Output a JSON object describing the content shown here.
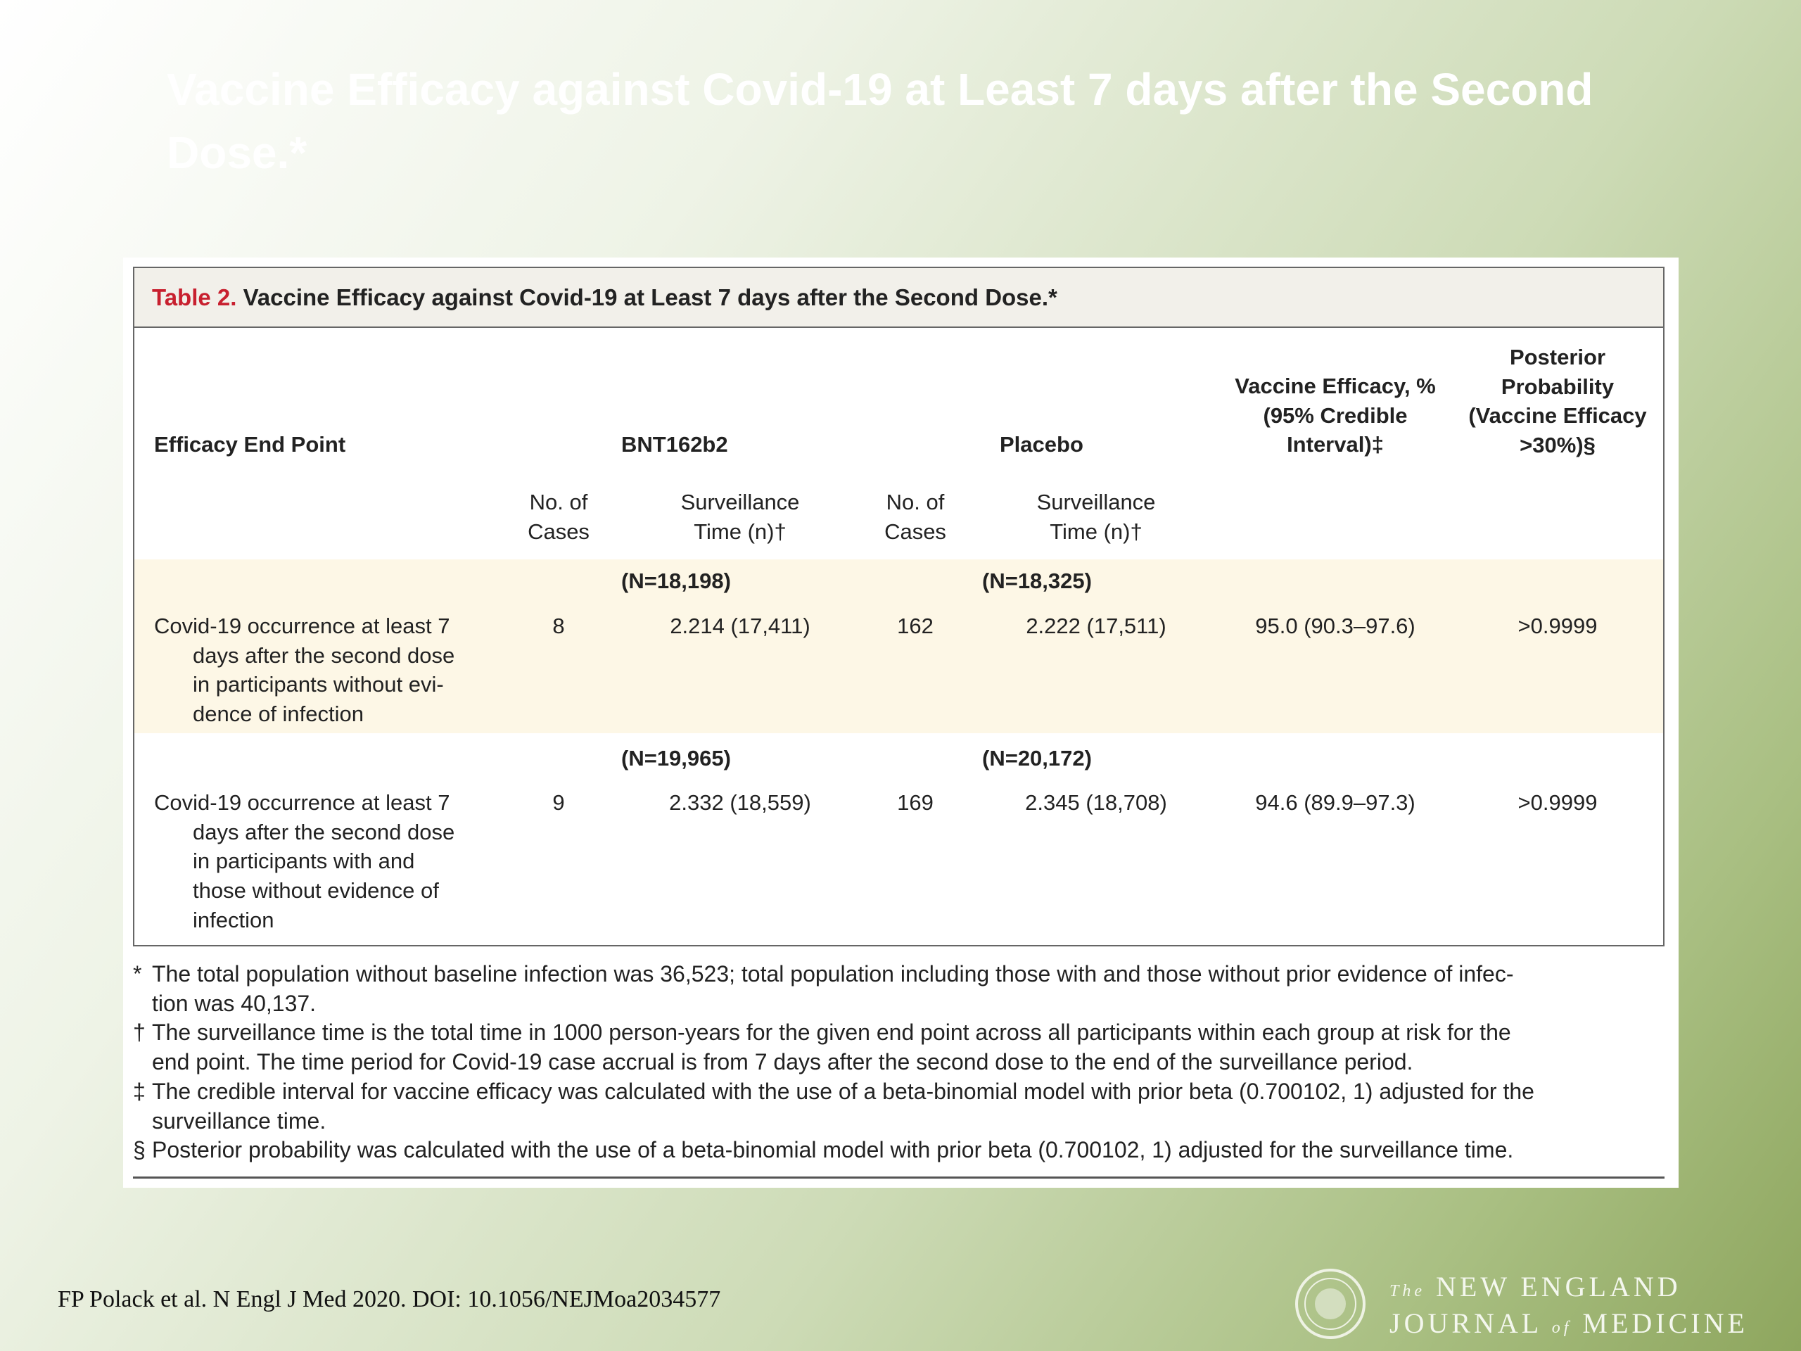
{
  "slide_title": "Vaccine Efficacy against Covid-19 at Least 7 days after the Second Dose.*",
  "table": {
    "label": "Table 2.",
    "caption": "Vaccine Efficacy against Covid-19 at Least 7 days after the Second Dose.*",
    "headers": {
      "end_point": "Efficacy End Point",
      "group1": "BNT162b2",
      "group2": "Placebo",
      "efficacy": [
        "Vaccine Efficacy, %",
        "(95% Credible",
        "Interval)‡"
      ],
      "posterior": [
        "Posterior",
        "Probability",
        "(Vaccine Efficacy",
        ">30%)§"
      ]
    },
    "subheaders": {
      "cases": [
        "No. of",
        "Cases"
      ],
      "time": [
        "Surveillance",
        "Time (n)†"
      ]
    },
    "rows": [
      {
        "n1": "(N=18,198)",
        "n2": "(N=18,325)",
        "end_point": [
          "Covid-19 occurrence at least 7",
          "days after the second dose",
          "in participants without evi-",
          "dence of infection"
        ],
        "cases1": "8",
        "time1": "2.214 (17,411)",
        "cases2": "162",
        "time2": "2.222 (17,511)",
        "efficacy": "95.0 (90.3–97.6)",
        "posterior": ">0.9999"
      },
      {
        "n1": "(N=19,965)",
        "n2": "(N=20,172)",
        "end_point": [
          "Covid-19 occurrence at least 7",
          "days after the second dose",
          "in participants with and",
          "those without evidence of",
          "infection"
        ],
        "cases1": "9",
        "time1": "2.332 (18,559)",
        "cases2": "169",
        "time2": "2.345 (18,708)",
        "efficacy": "94.6 (89.9–97.3)",
        "posterior": ">0.9999"
      }
    ]
  },
  "footnotes": [
    {
      "mark": "*",
      "lines": [
        "The total population without baseline infection was 36,523; total population including those with and those without prior evidence of infec-",
        "tion was 40,137."
      ]
    },
    {
      "mark": "†",
      "lines": [
        "The surveillance time is the total time in 1000 person-years for the given end point across all participants within each group at risk for the",
        "end point. The time period for Covid-19 case accrual is from 7 days after the second dose to the end of the surveillance period."
      ]
    },
    {
      "mark": "‡",
      "lines": [
        "The credible interval for vaccine efficacy was calculated with the use of a beta-binomial model with prior beta (0.700102, 1) adjusted for the",
        "surveillance time."
      ]
    },
    {
      "mark": "§",
      "lines": [
        "Posterior probability was calculated with the use of a beta-binomial model with prior beta (0.700102, 1) adjusted for the surveillance time."
      ]
    }
  ],
  "citation": "FP Polack et al. N Engl J Med 2020. DOI: 10.1056/NEJMoa2034577",
  "logo": {
    "the": "The",
    "line1": "NEW ENGLAND",
    "line2a": "JOURNAL",
    "of": "of",
    "line2b": "MEDICINE"
  }
}
